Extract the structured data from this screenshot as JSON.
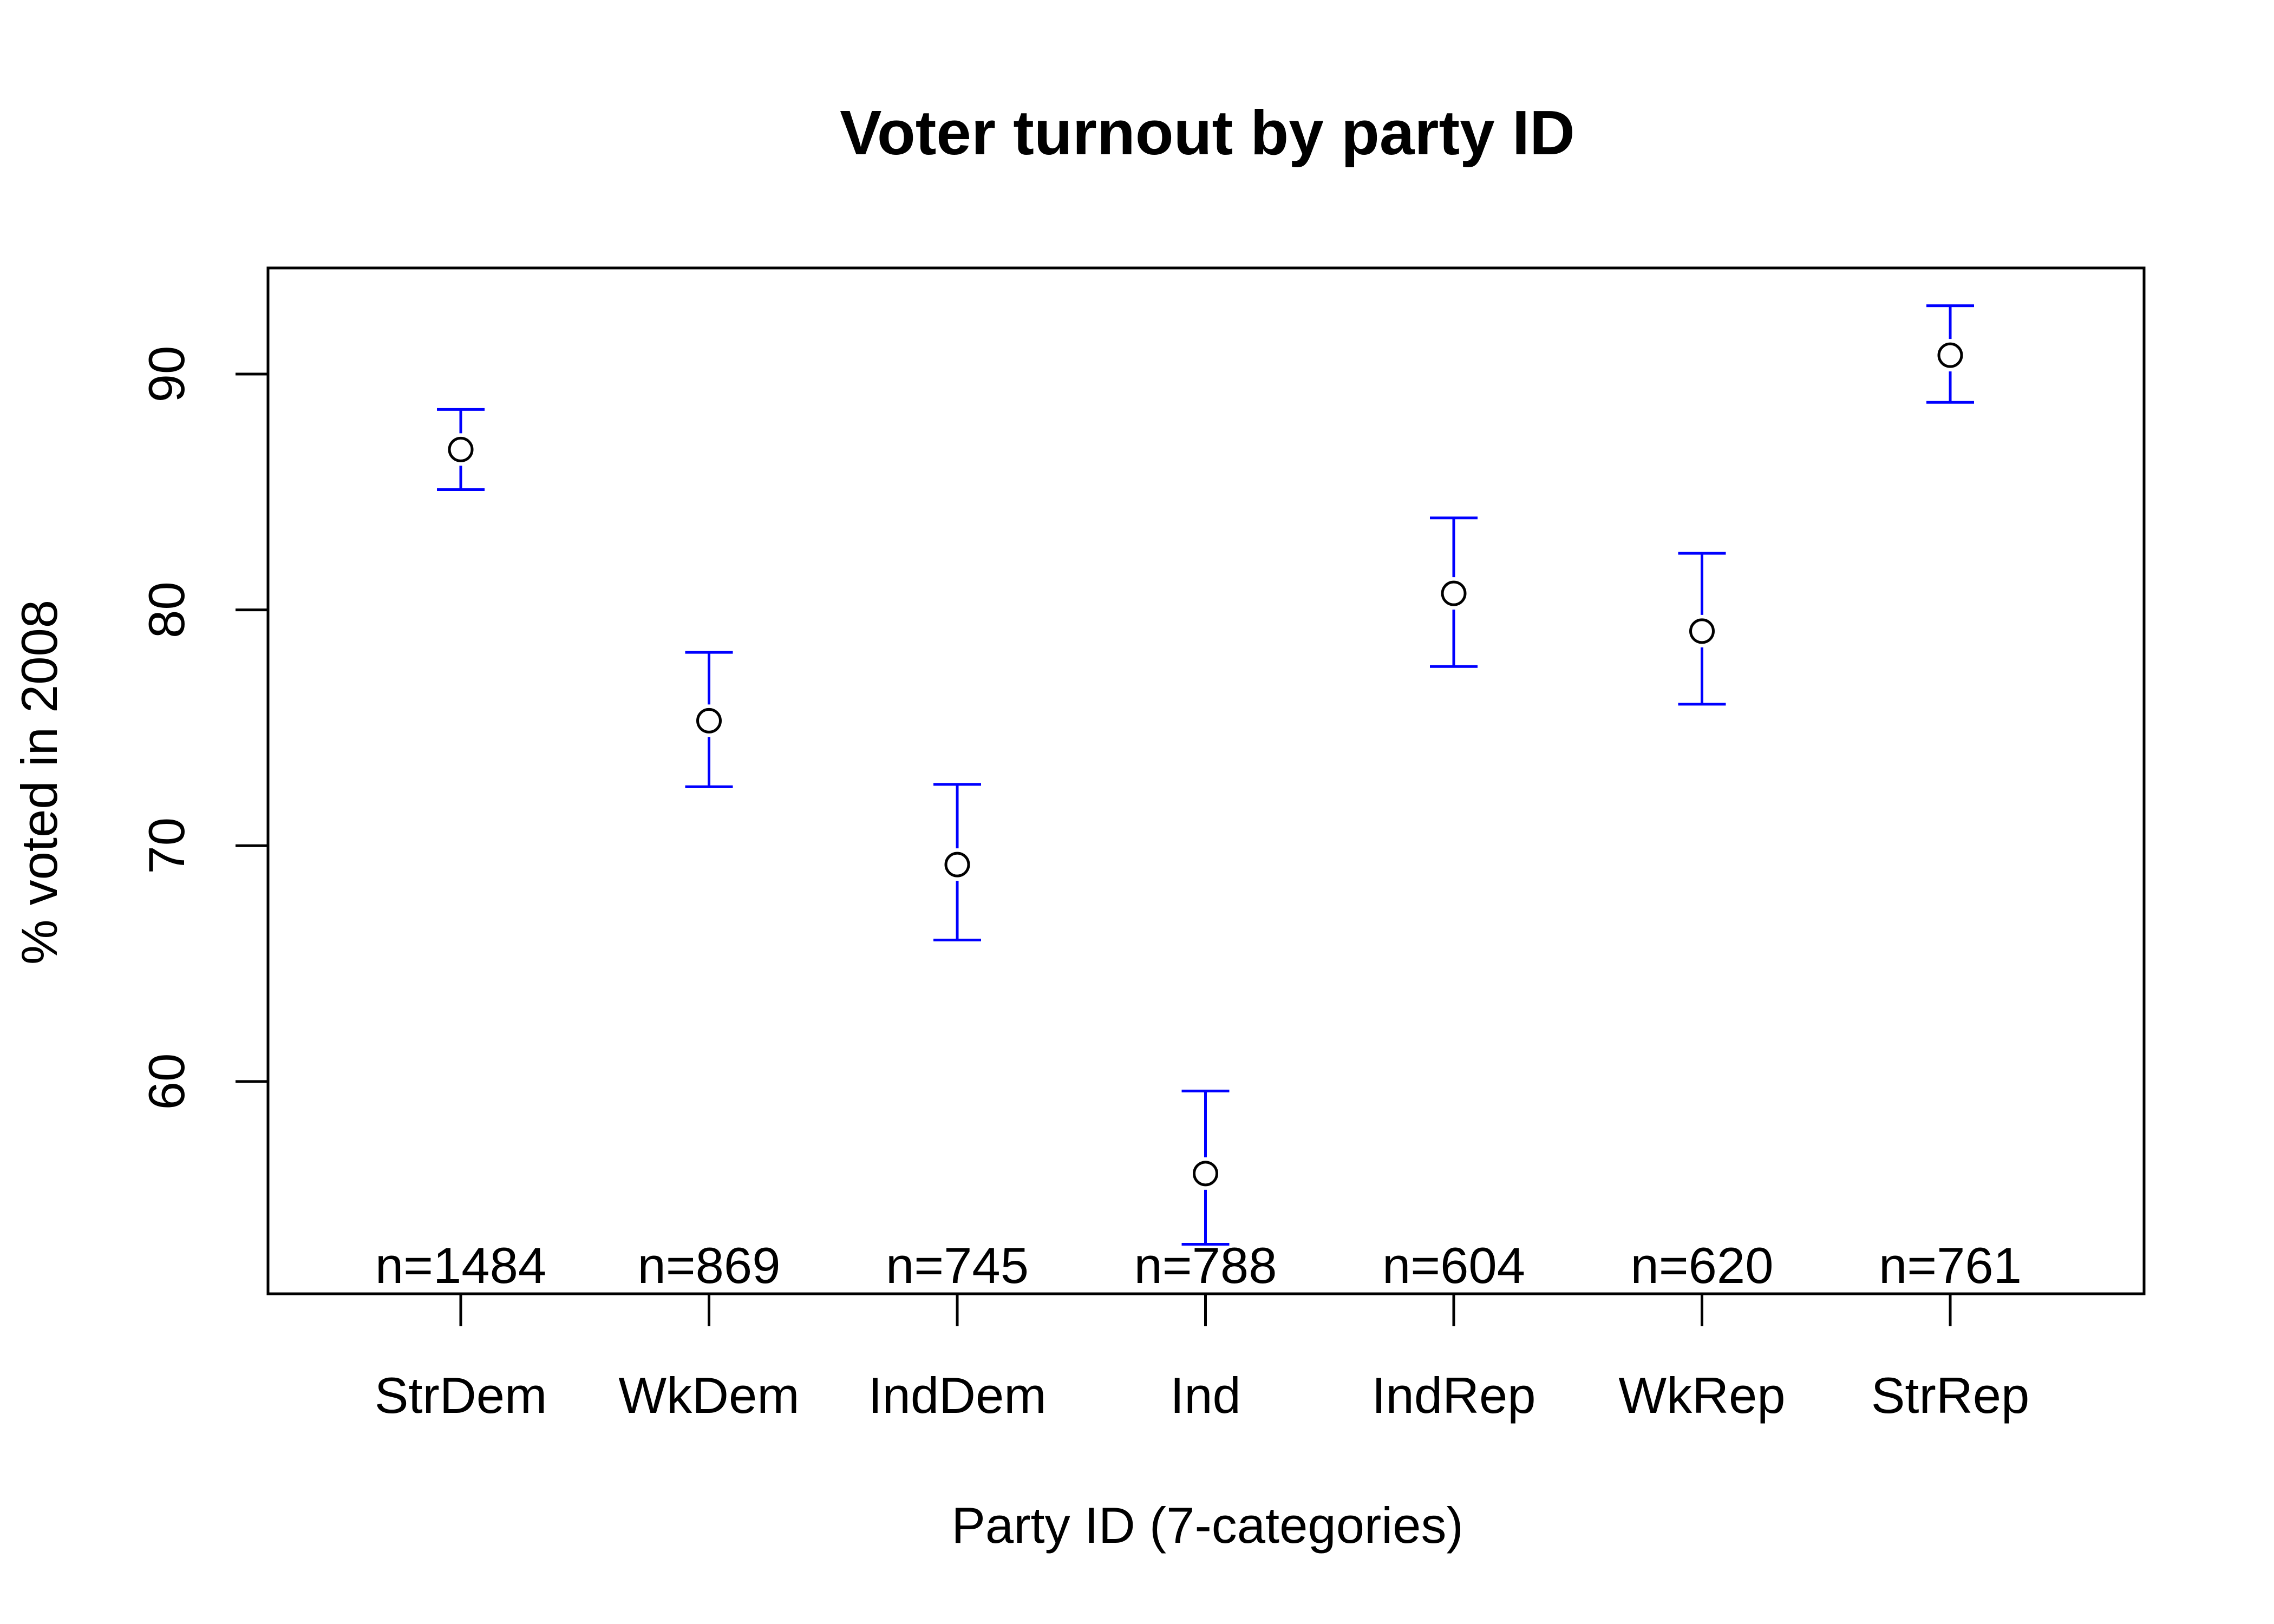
{
  "chart_data": {
    "type": "scatter",
    "title": "Voter turnout by party ID",
    "xlabel": "Party ID (7-categories)",
    "ylabel": "% voted in 2008",
    "categories": [
      "StrDem",
      "WkDem",
      "IndDem",
      "Ind",
      "IndRep",
      "WkRep",
      "StrRep"
    ],
    "values": [
      86.8,
      75.3,
      69.2,
      56.1,
      80.7,
      79.1,
      90.8
    ],
    "ci_upper": [
      88.5,
      78.2,
      72.6,
      59.6,
      83.9,
      82.4,
      92.9
    ],
    "ci_lower": [
      85.1,
      72.5,
      66.0,
      53.1,
      77.6,
      76.0,
      88.8
    ],
    "n_labels": [
      "n=1484",
      "n=869",
      "n=745",
      "n=788",
      "n=604",
      "n=620",
      "n=761"
    ],
    "yticks": [
      60,
      70,
      80,
      90
    ],
    "ylim": [
      51,
      94.5
    ],
    "colors": {
      "error_bars": "#0000ff",
      "points": "#000000"
    },
    "grid": false,
    "legend": "none"
  }
}
